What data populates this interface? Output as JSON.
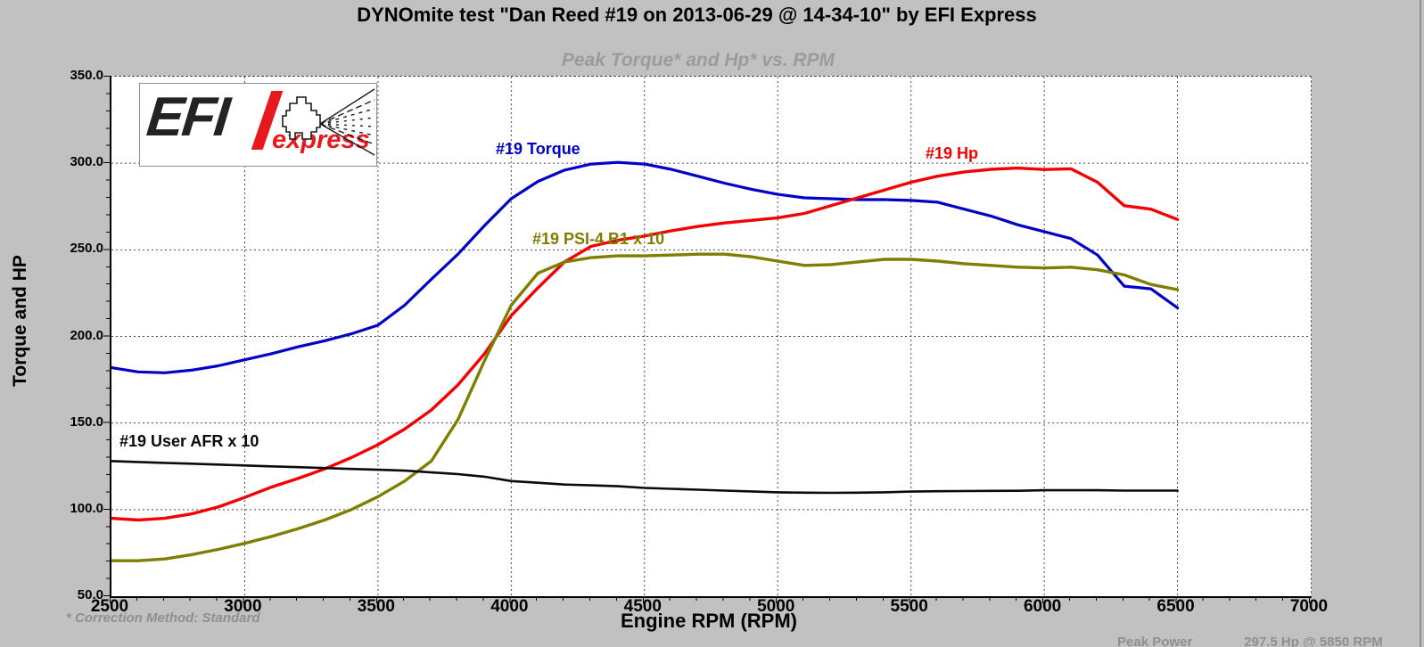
{
  "page": {
    "title": "DYNOmite test \"Dan Reed #19 on 2013-06-29 @ 14-34-10\" by EFI Express",
    "footer_left": "* Correction Method: Standard",
    "peak_label": "Peak Power",
    "peak_value": "297.5 Hp @ 5850 RPM"
  },
  "logo": {
    "efi": "EFI",
    "express": "express"
  },
  "colors": {
    "background": "#c1c1c1",
    "plot_background": "#ffffff",
    "grid": "#4a4a4a",
    "torque": "#0000c8",
    "hp": "#f40000",
    "psi": "#7e7e00",
    "afr": "#0a0a0a",
    "subtitle_gray": "#9b9b9b",
    "footer_gray": "#8f8f8f",
    "logo_red": "#e8191c"
  },
  "chart_data": {
    "type": "line",
    "title": "Peak Torque* and Hp* vs. RPM",
    "xlabel": "Engine RPM (RPM)",
    "ylabel": "Torque and HP",
    "xlim": [
      2500,
      7000
    ],
    "ylim": [
      50,
      350
    ],
    "grid": true,
    "x_tick_labels": [
      "2500",
      "3000",
      "3500",
      "4000",
      "4500",
      "5000",
      "5500",
      "6000",
      "6500",
      "7000"
    ],
    "y_tick_labels": [
      "350.0",
      "300.0",
      "250.0",
      "200.0",
      "150.0",
      "100.0",
      "50.0"
    ],
    "x_ticks": [
      2500,
      3000,
      3500,
      4000,
      4500,
      5000,
      5500,
      6000,
      6500,
      7000
    ],
    "y_ticks": [
      350,
      300,
      250,
      200,
      150,
      100,
      50
    ],
    "x": [
      2500,
      2600,
      2700,
      2800,
      2900,
      3000,
      3100,
      3200,
      3300,
      3400,
      3500,
      3600,
      3700,
      3800,
      3900,
      4000,
      4100,
      4200,
      4300,
      4400,
      4500,
      4600,
      4700,
      4800,
      4900,
      5000,
      5100,
      5200,
      5300,
      5400,
      5500,
      5600,
      5700,
      5800,
      5900,
      6000,
      6100,
      6200,
      6300,
      6400,
      6500
    ],
    "series": [
      {
        "name": "#19 Torque",
        "color": "#0000c8",
        "width": 3.2,
        "values": [
          182,
          179.5,
          179,
          180.5,
          183,
          186.5,
          190,
          194,
          197.5,
          201.5,
          206.5,
          218,
          233,
          247.5,
          264,
          279.5,
          289.5,
          296,
          299.5,
          300.5,
          299.5,
          296.5,
          292.5,
          288.5,
          285,
          282,
          280,
          279.5,
          279,
          279,
          278.5,
          277.5,
          273.5,
          269.5,
          264.5,
          260.5,
          256.5,
          247,
          229,
          227.5,
          216.5
        ]
      },
      {
        "name": "#19 Hp",
        "color": "#f40000",
        "width": 3.4,
        "values": [
          95,
          94,
          95,
          97.5,
          101.5,
          107,
          113,
          118,
          123.5,
          130,
          137.5,
          146.5,
          157.5,
          172,
          190,
          212,
          228,
          243,
          252,
          255.5,
          258,
          261,
          263.5,
          265.5,
          267,
          268.5,
          271,
          275.5,
          280,
          284.5,
          289,
          292.5,
          295,
          296.5,
          297.2,
          296.4,
          296.8,
          289,
          275.5,
          273.5,
          267.5
        ]
      },
      {
        "name": "#19 PSI-4 B1 x 10",
        "color": "#7e7e00",
        "width": 3.4,
        "values": [
          70.5,
          70.5,
          71.5,
          74,
          77,
          80.5,
          84.5,
          89,
          94,
          100,
          107.5,
          116.5,
          128,
          152,
          186,
          218,
          236.5,
          243,
          245.5,
          246.5,
          246.5,
          247,
          247.5,
          247.5,
          246,
          243.5,
          241,
          241.5,
          243,
          244.5,
          244.5,
          243.5,
          242,
          241,
          240,
          239.5,
          240,
          238.5,
          235.5,
          230,
          227
        ]
      },
      {
        "name": "#19 User AFR x 10",
        "color": "#0a0a0a",
        "width": 2.6,
        "values": [
          128,
          127.5,
          127,
          126.5,
          126,
          125.5,
          125,
          124.5,
          124,
          123.5,
          123,
          122.5,
          121.5,
          120.5,
          119,
          116.5,
          115.5,
          114.5,
          114,
          113.5,
          112.5,
          112,
          111.5,
          111,
          110.5,
          110,
          109.8,
          109.7,
          109.8,
          110,
          110.4,
          110.6,
          110.7,
          110.8,
          110.9,
          111.2,
          111.2,
          111.2,
          111,
          111,
          111
        ]
      }
    ]
  }
}
